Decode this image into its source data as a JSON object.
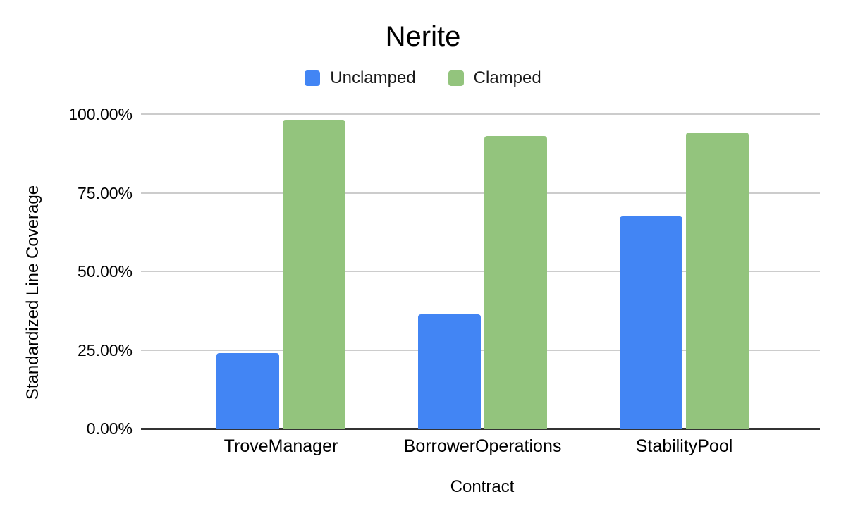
{
  "chart_data": {
    "type": "bar",
    "title": "Nerite",
    "categories": [
      "TroveManager",
      "BorrowerOperations",
      "StabilityPool"
    ],
    "series": [
      {
        "name": "Unclamped",
        "color": "#4285f4",
        "values": [
          24.1,
          36.3,
          67.4
        ]
      },
      {
        "name": "Clamped",
        "color": "#93c47d",
        "values": [
          98.2,
          93.0,
          94.1
        ]
      }
    ],
    "xlabel": "Contract",
    "ylabel": "Standardized Line Coverage",
    "ylim": [
      0,
      100
    ],
    "ytick_labels": [
      "0.00%",
      "25.00%",
      "50.00%",
      "75.00%",
      "100.00%"
    ],
    "grid": true,
    "legend_position": "top",
    "legend": [
      {
        "label": "Unclamped",
        "color": "#4285f4"
      },
      {
        "label": "Clamped",
        "color": "#93c47d"
      }
    ]
  },
  "colors": {
    "background": "#ffffff",
    "gridline": "#cccccc",
    "axis_line": "#333333",
    "text": "#000000"
  }
}
